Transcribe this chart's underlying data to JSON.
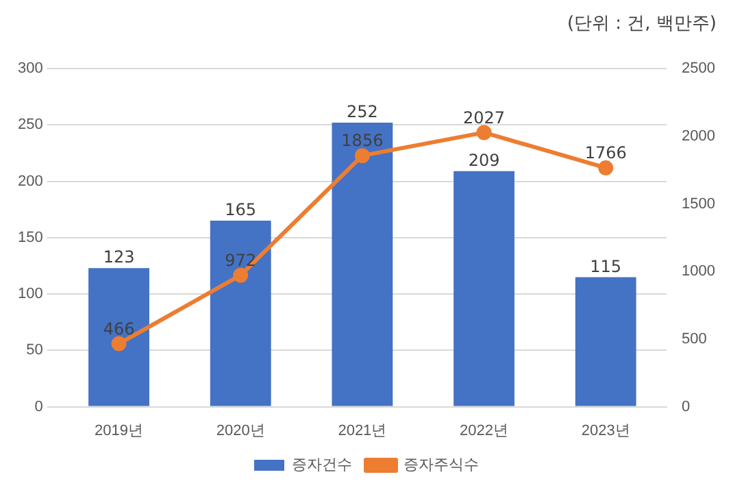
{
  "chart_data": {
    "type": "bar",
    "categories": [
      "2019년",
      "2020년",
      "2021년",
      "2022년",
      "2023년"
    ],
    "series": [
      {
        "name": "증자건수",
        "color": "#4472c4",
        "values": [
          123,
          165,
          252,
          209,
          115
        ]
      },
      {
        "name": "증자주식수",
        "type": "line",
        "axis": "y2",
        "color": "#ed7d31",
        "marker": "circle",
        "values": [
          466,
          972,
          1856,
          2027,
          1766
        ]
      }
    ],
    "ylim": [
      0,
      300
    ],
    "yticks": [
      0,
      50,
      100,
      150,
      200,
      250,
      300
    ],
    "y2lim": [
      0,
      2500
    ],
    "y2ticks": [
      0,
      500,
      1000,
      1500,
      2000,
      2500
    ],
    "grid": "y",
    "legend": "bottom",
    "data_labels": true,
    "annotations": [
      "(단위 : 건, 백만주)"
    ]
  }
}
